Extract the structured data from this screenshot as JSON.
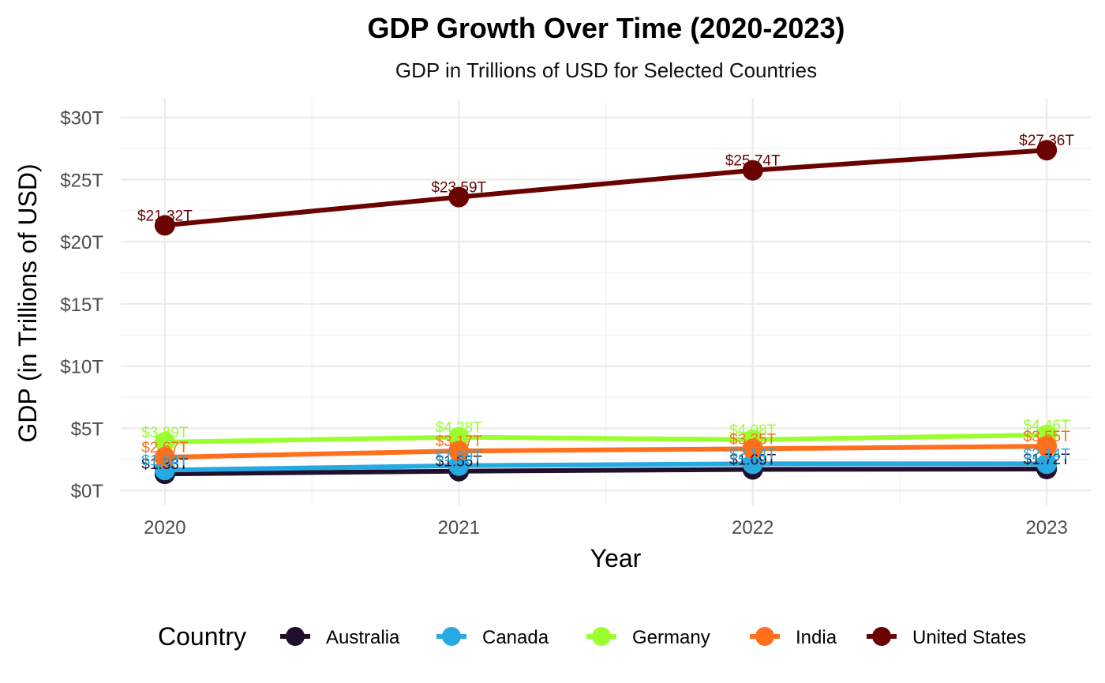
{
  "chart_data": {
    "type": "line",
    "title": "GDP Growth Over Time (2020-2023)",
    "subtitle": "GDP in Trillions of USD for Selected Countries",
    "xlabel": "Year",
    "ylabel": "GDP (in Trillions of USD)",
    "x": [
      2020,
      2021,
      2022,
      2023
    ],
    "x_tick_labels": [
      "2020",
      "2021",
      "2022",
      "2023"
    ],
    "xlim": [
      2019.85,
      2023.15
    ],
    "ylim": [
      -1.2,
      31.5
    ],
    "y_ticks": [
      0,
      5,
      10,
      15,
      20,
      25,
      30
    ],
    "y_tick_labels": [
      "$0T",
      "$5T",
      "$10T",
      "$15T",
      "$20T",
      "$25T",
      "$30T"
    ],
    "grid": true,
    "legend_title": "Country",
    "legend_position": "bottom",
    "series": [
      {
        "name": "Australia",
        "color": "#20102e",
        "values": [
          1.33,
          1.55,
          1.69,
          1.72
        ],
        "labels": [
          "$1.33T",
          "$1.55T",
          "$1.69T",
          "$1.72T"
        ]
      },
      {
        "name": "Canada",
        "color": "#27a9e1",
        "values": [
          1.64,
          1.99,
          2.14,
          2.14
        ],
        "labels": [
          "$1.64T",
          "$1.99T",
          "$2.14T",
          "$2.14T"
        ]
      },
      {
        "name": "Germany",
        "color": "#99ff2e",
        "values": [
          3.89,
          4.28,
          4.08,
          4.46
        ],
        "labels": [
          "$3.89T",
          "$4.28T",
          "$4.08T",
          "$4.46T"
        ]
      },
      {
        "name": "India",
        "color": "#ff6f1c",
        "values": [
          2.67,
          3.17,
          3.35,
          3.55
        ],
        "labels": [
          "$2.67T",
          "$3.17T",
          "$3.35T",
          "$3.55T"
        ]
      },
      {
        "name": "United States",
        "color": "#6b0202",
        "values": [
          21.32,
          23.59,
          25.74,
          27.36
        ],
        "labels": [
          "$21.32T",
          "$23.59T",
          "$25.74T",
          "$27.36T"
        ]
      }
    ]
  }
}
